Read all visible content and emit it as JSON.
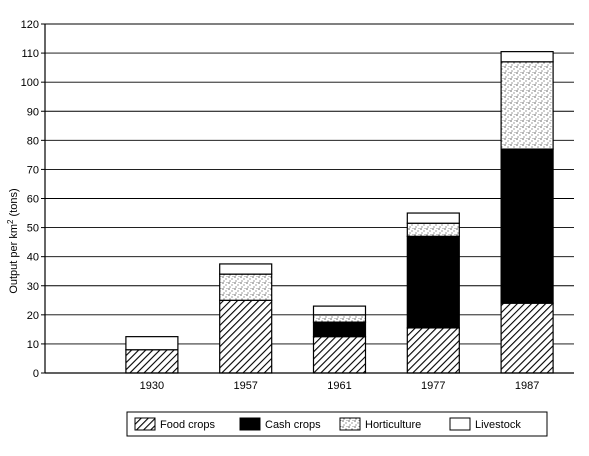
{
  "chart_data": {
    "type": "bar",
    "stacked": true,
    "categories": [
      "1930",
      "1957",
      "1961",
      "1977",
      "1987"
    ],
    "series": [
      {
        "name": "Food crops",
        "values": [
          8,
          25,
          12.5,
          15.5,
          24
        ],
        "pattern": "diagonal-hatch"
      },
      {
        "name": "Cash crops",
        "values": [
          0,
          0,
          5,
          31.5,
          53
        ],
        "pattern": "solid-black"
      },
      {
        "name": "Horticulture",
        "values": [
          0,
          9,
          2.5,
          4.5,
          30
        ],
        "pattern": "stipple"
      },
      {
        "name": "Livestock",
        "values": [
          4.5,
          3.5,
          3,
          3.5,
          3.5
        ],
        "pattern": "white"
      }
    ],
    "ylabel_main": "Output per km",
    "ylabel_sup": "2",
    "ylabel_tail": " (tons)",
    "ylim": [
      0,
      120
    ],
    "yticks": [
      "0",
      "10",
      "20",
      "30",
      "40",
      "50",
      "60",
      "70",
      "80",
      "90",
      "100",
      "110",
      "120"
    ],
    "grid": "horizontal",
    "legend_position": "bottom",
    "colors": {
      "ink": "#000000",
      "paper": "#ffffff"
    }
  }
}
